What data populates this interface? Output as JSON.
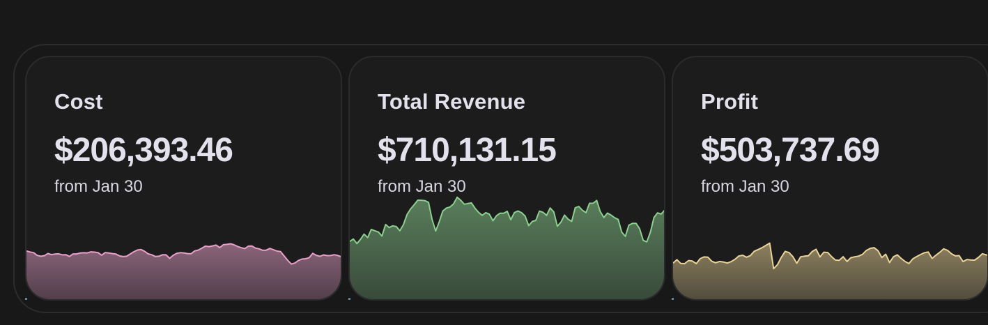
{
  "cards": [
    {
      "title": "Cost",
      "value": "$206,393.46",
      "subtitle": "from Jan 30",
      "color": "#e7a0c8",
      "sparkline": [
        31.1,
        29.7,
        28.7,
        24.8,
        23.6,
        24.4,
        27.5,
        25.9,
        26.7,
        27.1,
        25.6,
        25.8,
        23.3,
        26.9,
        26.9,
        28.2,
        28.6,
        28.4,
        29.9,
        29.5,
        28.8,
        25.1,
        28.9,
        28.3,
        27.4,
        26.7,
        24.1,
        23.1,
        23.6,
        26.9,
        30.0,
        32.5,
        33.2,
        30.7,
        27.1,
        25.7,
        23.2,
        23.6,
        25.7,
        25.6,
        20.6,
        25.0,
        27.8,
        28.7,
        28.3,
        27.4,
        27.2,
        31.2,
        32.4,
        35.1,
        38.1,
        37.4,
        38.4,
        39.6,
        36.0,
        40.1,
        40.6,
        41.5,
        40.0,
        37.6,
        35.8,
        34.6,
        38.1,
        38.2,
        35.3,
        34.2,
        32.1,
        32.3,
        34.8,
        32.9,
        31.0,
        30.2,
        24.0,
        17.6,
        12.4,
        13.8,
        17.6,
        19.6,
        20.0,
        21.6,
        27.7,
        24.9,
        23.5,
        25.5,
        24.5,
        24.6,
        25.8,
        24.6,
        22.8
      ]
    },
    {
      "title": "Total Revenue",
      "value": "$710,131.15",
      "subtitle": "from Jan 30",
      "color": "#8ccf8f",
      "sparkline": [
        44.8,
        48.3,
        41.8,
        47.8,
        55.3,
        50.4,
        62.0,
        60.1,
        58.3,
        52.6,
        69.1,
        64.7,
        67.2,
        66.1,
        60.2,
        68.9,
        83.4,
        91.4,
        97.5,
        104.0,
        103.9,
        103.3,
        100.9,
        76.5,
        59.7,
        72.9,
        88.4,
        92.7,
        94.1,
        98.8,
        108.2,
        103.9,
        98.2,
        99.1,
        100.1,
        92.4,
        86.5,
        82.3,
        86.1,
        83.9,
        74.5,
        81.7,
        85.3,
        85.3,
        88.0,
        76.0,
        86.2,
        88.5,
        86.1,
        81.1,
        67.4,
        73.5,
        75.1,
        88.3,
        86.5,
        82.2,
        92.8,
        87.2,
        66.6,
        72.3,
        82.6,
        76.8,
        73.5,
        93.1,
        95.0,
        89.5,
        86.1,
        99.5,
        99.6,
        103.6,
        87.6,
        79.1,
        85.5,
        82.6,
        78.9,
        76.3,
        58.1,
        52.1,
        68.2,
        70.7,
        70.8,
        63.1,
        46.3,
        44.2,
        58.1,
        79.2,
        85.8,
        84.1,
        89.8
      ]
    },
    {
      "title": "Profit",
      "value": "$503,737.69",
      "subtitle": "from Jan 30",
      "color": "#ead397",
      "sparkline": [
        13.7,
        18.6,
        13.2,
        13.0,
        17.4,
        16.7,
        13.0,
        20.0,
        22.6,
        22.3,
        16.4,
        14.2,
        16.1,
        15.4,
        13.8,
        15.8,
        19.1,
        23.9,
        25.0,
        22.2,
        24.6,
        30.7,
        33.2,
        35.8,
        39.1,
        42.4,
        5.8,
        11.4,
        22.1,
        30.6,
        28.8,
        22.9,
        13.5,
        22.8,
        23.7,
        24.3,
        30.4,
        33.6,
        22.7,
        29.4,
        28.9,
        23.0,
        18.1,
        17.8,
        22.9,
        16.1,
        21.5,
        22.8,
        23.8,
        26.3,
        31.9,
        34.9,
        35.9,
        31.6,
        21.7,
        26.5,
        14.5,
        22.8,
        25.6,
        20.5,
        16.1,
        13.1,
        19.8,
        23.1,
        26.0,
        28.6,
        29.7,
        20.5,
        25.1,
        29.3,
        34.2,
        32.0,
        27.3,
        24.1,
        24.5,
        15.9,
        18.9,
        18.3,
        18.0,
        22.0,
        27.2,
        25.5,
        25.1
      ]
    }
  ]
}
